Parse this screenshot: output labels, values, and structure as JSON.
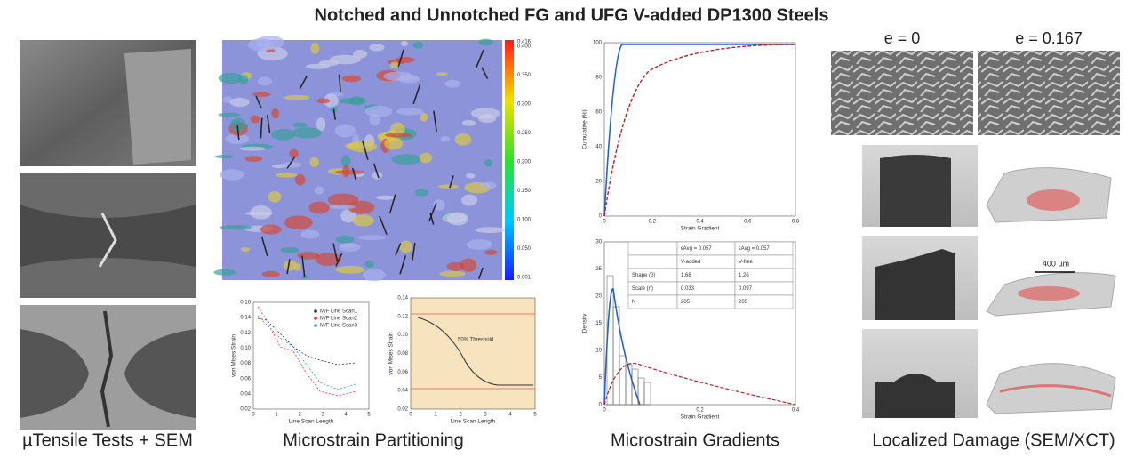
{
  "title": "Notched and Unnotched FG and UFG V-added DP1300 Steels",
  "tensile": {
    "caption": "µTensile Tests + SEM"
  },
  "partitioning": {
    "caption": "Microstrain Partitioning",
    "colorbar_ticks": [
      "0.416",
      "0.400",
      "0.350",
      "0.300",
      "0.250",
      "0.200",
      "0.150",
      "0.100",
      "0.050",
      "0.001"
    ],
    "plot1": {
      "y_label": "von Mises Strain",
      "x_label": "Line Scan Length",
      "yticks": [
        "0.02",
        "0.04",
        "0.06",
        "0.08",
        "0.10",
        "0.12",
        "0.14",
        "0.16"
      ],
      "xticks": [
        "0",
        "1",
        "2",
        "3",
        "4",
        "5"
      ],
      "legend": [
        "M/F Line Scan1",
        "M/F Line Scan2",
        "M/F Line Scan3"
      ]
    },
    "plot2": {
      "y_label": "von Mises Strain",
      "x_label": "Line Scan Length",
      "yticks": [
        "0.02",
        "0.04",
        "0.06",
        "0.08",
        "0.10",
        "0.12",
        "0.14"
      ],
      "xticks": [
        "0",
        "1",
        "2",
        "3",
        "4",
        "5"
      ],
      "annotation": "50% Threshold"
    }
  },
  "gradients": {
    "caption": "Microstrain Gradients",
    "plot1": {
      "y_label": "Cumulative (%)",
      "x_label": "Strain Gradient",
      "yticks": [
        "0",
        "20",
        "40",
        "60",
        "80",
        "100"
      ],
      "xticks": [
        "0",
        "0.2",
        "0.4",
        "0.6",
        "0.8"
      ]
    },
    "plot2": {
      "y_label": "Density",
      "x_label": "Strain Gradient",
      "yticks": [
        "0",
        "5",
        "10",
        "15",
        "20",
        "25",
        "30"
      ],
      "xticks": [
        "0",
        "0.2",
        "0.4"
      ],
      "table": [
        [
          "",
          "εAvg = 0.057",
          "εAvg = 0.057"
        ],
        [
          "",
          "V-added",
          "V-free"
        ],
        [
          "Shape (β)",
          "1.68",
          "1.26"
        ],
        [
          "Scale (η)",
          "0.033",
          "0.097"
        ],
        [
          "N",
          "205",
          "205"
        ]
      ]
    }
  },
  "damage": {
    "caption": "Localized Damage (SEM/XCT)",
    "strain_labels": [
      "e = 0",
      "e = 0.167"
    ],
    "scale_bar": "400 µm"
  }
}
